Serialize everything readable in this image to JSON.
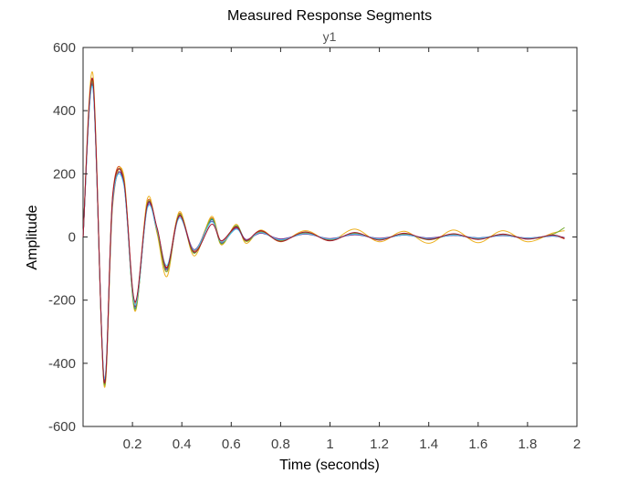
{
  "chart_data": {
    "type": "line",
    "title": "Measured Response Segments",
    "subtitle": "y1",
    "xlabel": "Time (seconds)",
    "ylabel": "Amplitude",
    "xlim": [
      0,
      2
    ],
    "ylim": [
      -600,
      600
    ],
    "x_ticks": [
      "0.2",
      "0.4",
      "0.6",
      "0.8",
      "1",
      "1.2",
      "1.4",
      "1.6",
      "1.8",
      "2"
    ],
    "y_ticks": [
      "600",
      "400",
      "200",
      "0",
      "-200",
      "-400",
      "-600"
    ],
    "grid": false,
    "series": [
      {
        "color": "#0072BD",
        "x": [
          0,
          0.04,
          0.085,
          0.12,
          0.165,
          0.21,
          0.26,
          0.3,
          0.34,
          0.39,
          0.45,
          0.52,
          0.56,
          0.62,
          0.66,
          0.72,
          0.8,
          0.9,
          1.0,
          1.1,
          1.2,
          1.3,
          1.4,
          1.5,
          1.6,
          1.7,
          1.8,
          1.9,
          1.95
        ],
        "y": [
          0,
          475,
          -450,
          120,
          170,
          -225,
          100,
          15,
          -100,
          70,
          -50,
          55,
          -20,
          35,
          -10,
          15,
          -8,
          10,
          -6,
          8,
          -5,
          6,
          -4,
          5,
          -3,
          5,
          -4,
          3,
          -2
        ]
      },
      {
        "color": "#D95319",
        "x": [
          0,
          0.04,
          0.085,
          0.12,
          0.165,
          0.21,
          0.26,
          0.3,
          0.34,
          0.39,
          0.45,
          0.52,
          0.56,
          0.62,
          0.66,
          0.72,
          0.8,
          0.9,
          1.0,
          1.1,
          1.2,
          1.3,
          1.4,
          1.5,
          1.6,
          1.7,
          1.8,
          1.9,
          1.95
        ],
        "y": [
          0,
          490,
          -460,
          135,
          185,
          -210,
          110,
          25,
          -95,
          75,
          -45,
          60,
          -15,
          30,
          -12,
          18,
          -10,
          12,
          -8,
          10,
          -7,
          8,
          -6,
          7,
          -5,
          6,
          -5,
          4,
          -6
        ]
      },
      {
        "color": "#EDB120",
        "x": [
          0,
          0.04,
          0.085,
          0.12,
          0.165,
          0.21,
          0.26,
          0.3,
          0.34,
          0.39,
          0.45,
          0.52,
          0.56,
          0.62,
          0.66,
          0.72,
          0.8,
          0.9,
          1.0,
          1.1,
          1.2,
          1.3,
          1.4,
          1.5,
          1.6,
          1.7,
          1.8,
          1.9,
          1.95
        ],
        "y": [
          0,
          515,
          -470,
          100,
          195,
          -235,
          120,
          10,
          -125,
          80,
          -60,
          65,
          -25,
          40,
          -20,
          22,
          -15,
          20,
          -12,
          25,
          -15,
          18,
          -20,
          22,
          -18,
          20,
          -15,
          12,
          20
        ]
      },
      {
        "color": "#7E2F8E",
        "x": [
          0,
          0.04,
          0.085,
          0.12,
          0.165,
          0.21,
          0.26,
          0.3,
          0.34,
          0.39,
          0.45,
          0.52,
          0.56,
          0.62,
          0.66,
          0.72,
          0.8,
          0.9,
          1.0,
          1.1,
          1.2,
          1.3,
          1.4,
          1.5,
          1.6,
          1.7,
          1.8,
          1.9,
          1.95
        ],
        "y": [
          0,
          480,
          -455,
          110,
          175,
          -220,
          95,
          20,
          -105,
          65,
          -40,
          50,
          -18,
          28,
          -8,
          12,
          -6,
          9,
          -5,
          7,
          -4,
          6,
          -3,
          5,
          -3,
          4,
          -3,
          3,
          -2
        ]
      },
      {
        "color": "#77AC30",
        "x": [
          0,
          0.04,
          0.085,
          0.12,
          0.165,
          0.21,
          0.26,
          0.3,
          0.34,
          0.39,
          0.45,
          0.52,
          0.56,
          0.62,
          0.66,
          0.72,
          0.8,
          0.9,
          1.0,
          1.1,
          1.2,
          1.3,
          1.4,
          1.5,
          1.6,
          1.7,
          1.8,
          1.9,
          1.95
        ],
        "y": [
          0,
          485,
          -465,
          125,
          180,
          -230,
          105,
          18,
          -110,
          72,
          -52,
          58,
          -22,
          36,
          -14,
          16,
          -12,
          14,
          -10,
          12,
          -8,
          10,
          -9,
          8,
          -7,
          9,
          -6,
          8,
          30
        ]
      },
      {
        "color": "#4DBEEE",
        "x": [
          0,
          0.04,
          0.085,
          0.12,
          0.165,
          0.21,
          0.26,
          0.3,
          0.34,
          0.39,
          0.45,
          0.52,
          0.56,
          0.62,
          0.66,
          0.72,
          0.8,
          0.9,
          1.0,
          1.1,
          1.2,
          1.3,
          1.4,
          1.5,
          1.6,
          1.7,
          1.8,
          1.9,
          1.95
        ],
        "y": [
          0,
          470,
          -445,
          115,
          165,
          -215,
          90,
          22,
          -90,
          60,
          -42,
          48,
          -16,
          25,
          -10,
          14,
          -9,
          11,
          -7,
          9,
          -6,
          7,
          -5,
          6,
          -4,
          5,
          -4,
          4,
          -3
        ]
      },
      {
        "color": "#A2142F",
        "x": [
          0,
          0.04,
          0.085,
          0.12,
          0.165,
          0.21,
          0.26,
          0.3,
          0.34,
          0.39,
          0.45,
          0.52,
          0.56,
          0.62,
          0.66,
          0.72,
          0.8,
          0.9,
          1.0,
          1.1,
          1.2,
          1.3,
          1.4,
          1.5,
          1.6,
          1.7,
          1.8,
          1.9,
          1.95
        ],
        "y": [
          0,
          495,
          -458,
          130,
          178,
          -205,
          102,
          28,
          -98,
          68,
          -48,
          40,
          -12,
          32,
          -11,
          20,
          -14,
          16,
          -12,
          14,
          -10,
          12,
          -8,
          10,
          -8,
          9,
          -7,
          6,
          -4
        ]
      }
    ]
  }
}
